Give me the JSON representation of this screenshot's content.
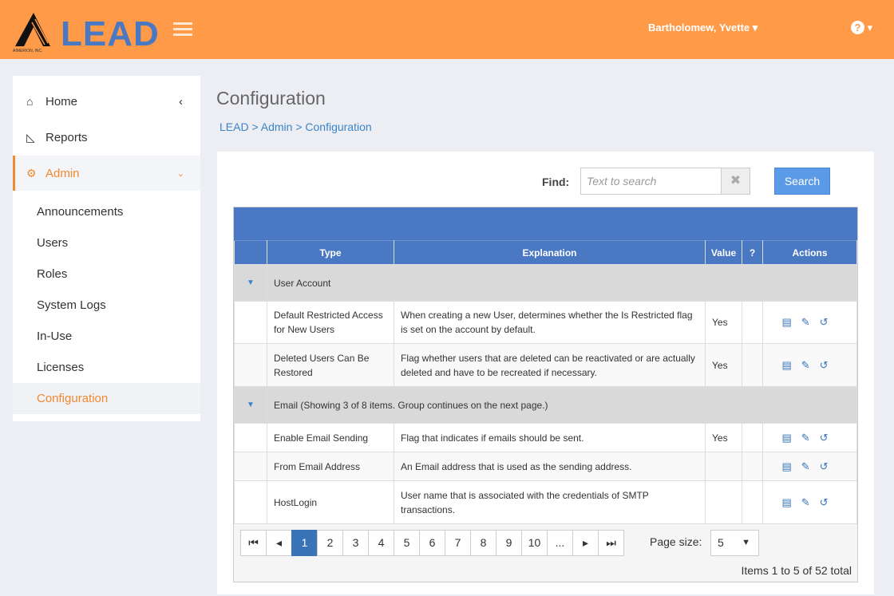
{
  "header": {
    "logo_text": "LEAD",
    "logo_caption": "AIMERION, INC.",
    "user": "Bartholomew, Yvette",
    "help": "?"
  },
  "sidebar": {
    "items": [
      {
        "label": "Home",
        "icon": "home-icon"
      },
      {
        "label": "Reports",
        "icon": "chart-icon"
      },
      {
        "label": "Admin",
        "icon": "gears-icon"
      }
    ],
    "sub_items": [
      "Announcements",
      "Users",
      "Roles",
      "System Logs",
      "In-Use",
      "Licenses",
      "Configuration"
    ],
    "active": "Configuration"
  },
  "page": {
    "title": "Configuration",
    "breadcrumb": "LEAD > Admin > Configuration"
  },
  "search": {
    "label": "Find:",
    "placeholder": "Text to search",
    "button": "Search"
  },
  "table": {
    "columns": [
      "Type",
      "Explanation",
      "Value",
      "?",
      "Actions"
    ],
    "groups": [
      {
        "name": "User Account",
        "rows": [
          {
            "type": "Default Restricted Access for New Users",
            "explanation": "When creating a new User, determines whether the Is Restricted flag is set on the account by default.",
            "value": "Yes"
          },
          {
            "type": "Deleted Users Can Be Restored",
            "explanation": "Flag whether users that are deleted can be reactivated or are actually deleted and have to be recreated if necessary.",
            "value": "Yes"
          }
        ]
      },
      {
        "name": "Email (Showing 3 of 8 items. Group continues on the next page.)",
        "rows": [
          {
            "type": "Enable Email Sending",
            "explanation": "Flag that indicates if emails should be sent.",
            "value": "Yes"
          },
          {
            "type": "From Email Address",
            "explanation": "An Email address that is used as the sending address.",
            "value": ""
          },
          {
            "type": "HostLogin",
            "explanation": "User name that is associated with the credentials of SMTP transactions.",
            "value": ""
          }
        ]
      }
    ]
  },
  "pager": {
    "pages": [
      "1",
      "2",
      "3",
      "4",
      "5",
      "6",
      "7",
      "8",
      "9",
      "10",
      "..."
    ],
    "current": "1",
    "page_size_label": "Page size:",
    "page_size": "5",
    "summary": "Items 1 to 5 of 52 total"
  },
  "colors": {
    "header": "#ff9a48",
    "accent": "#4a78c2",
    "active": "#f0892f"
  }
}
